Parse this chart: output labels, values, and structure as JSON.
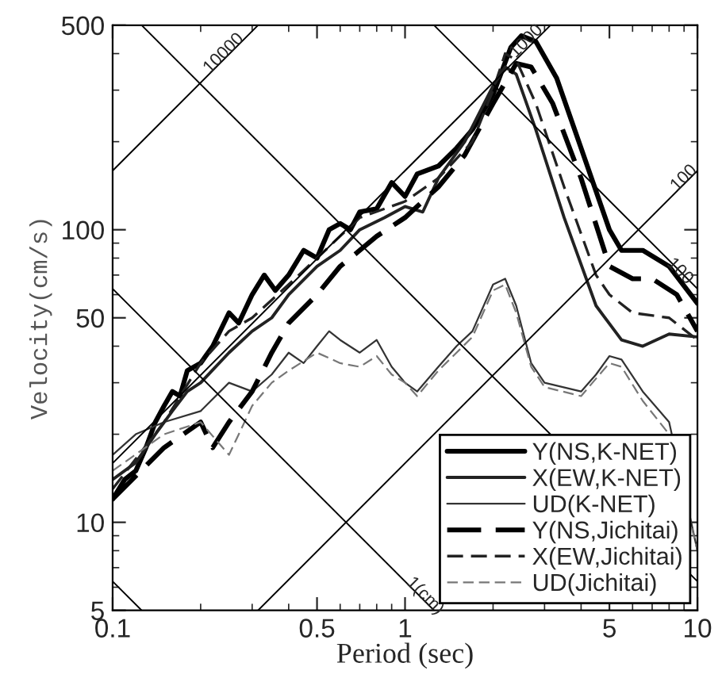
{
  "chart_data": {
    "type": "line",
    "xlabel": "Period (sec)",
    "ylabel": "Velocity(cm/s)",
    "log": "xy",
    "grid": false,
    "legend": "bottom right",
    "xlim": [
      0.1,
      10
    ],
    "xticks": [
      0.1,
      0.5,
      1,
      5,
      10
    ],
    "ylim": [
      5,
      500
    ],
    "yticks": [
      5,
      10,
      50,
      100,
      500
    ],
    "series": [
      {
        "name": "Y(NS,K-NET)",
        "color": "#000000",
        "line_style": "solid",
        "x": [
          0.1,
          0.11,
          0.12,
          0.13,
          0.14,
          0.15,
          0.16,
          0.17,
          0.18,
          0.2,
          0.22,
          0.25,
          0.27,
          0.3,
          0.33,
          0.36,
          0.4,
          0.45,
          0.5,
          0.55,
          0.6,
          0.65,
          0.7,
          0.8,
          0.9,
          1.0,
          1.1,
          1.3,
          1.5,
          1.7,
          2.0,
          2.3,
          2.5,
          2.8,
          3.3,
          4,
          5,
          5.5,
          6.5,
          8,
          10
        ],
        "values": [
          12,
          14,
          15,
          18,
          22,
          25,
          28,
          27,
          33,
          35,
          40,
          52,
          48,
          60,
          70,
          62,
          70,
          85,
          80,
          100,
          105,
          100,
          115,
          118,
          145,
          130,
          155,
          165,
          190,
          220,
          290,
          420,
          460,
          440,
          330,
          190,
          100,
          85,
          85,
          75,
          56
        ]
      },
      {
        "name": "X(EW,K-NET)",
        "color": "#222222",
        "line_style": "solid",
        "x": [
          0.1,
          0.12,
          0.14,
          0.16,
          0.18,
          0.2,
          0.25,
          0.3,
          0.35,
          0.4,
          0.5,
          0.6,
          0.7,
          0.85,
          1.0,
          1.15,
          1.3,
          1.6,
          2.0,
          2.2,
          2.4,
          2.8,
          3.5,
          4.5,
          5.5,
          6.5,
          8,
          10
        ],
        "values": [
          14,
          16,
          20,
          24,
          28,
          30,
          38,
          45,
          50,
          60,
          75,
          85,
          100,
          110,
          120,
          115,
          150,
          200,
          310,
          360,
          340,
          220,
          110,
          55,
          42,
          40,
          44,
          43
        ]
      },
      {
        "name": "UD(K-NET)",
        "color": "#333333",
        "line_style": "solid",
        "x": [
          0.1,
          0.12,
          0.15,
          0.2,
          0.25,
          0.3,
          0.35,
          0.4,
          0.45,
          0.5,
          0.55,
          0.6,
          0.7,
          0.8,
          0.9,
          1.0,
          1.1,
          1.3,
          1.5,
          1.7,
          2.0,
          2.2,
          2.4,
          2.7,
          3.0,
          4.0,
          4.5,
          5.0,
          5.5,
          6.5,
          8,
          10
        ],
        "values": [
          17,
          20,
          22,
          24,
          30,
          28,
          32,
          38,
          35,
          40,
          45,
          42,
          38,
          42,
          34,
          30,
          28,
          34,
          40,
          45,
          65,
          68,
          55,
          35,
          30,
          28,
          32,
          37,
          36,
          28,
          22,
          8
        ]
      },
      {
        "name": "Y(NS,Jichitai)",
        "color": "#000000",
        "line_style": "dashed",
        "x": [
          0.1,
          0.15,
          0.2,
          0.22,
          0.25,
          0.3,
          0.35,
          0.4,
          0.5,
          0.6,
          0.7,
          0.8,
          1.0,
          1.3,
          1.6,
          2.0,
          2.4,
          2.7,
          3.2,
          4,
          5,
          6,
          7,
          8.5,
          10
        ],
        "values": [
          12,
          18,
          22,
          18,
          22,
          28,
          38,
          48,
          60,
          75,
          85,
          95,
          110,
          140,
          180,
          270,
          370,
          360,
          270,
          150,
          75,
          68,
          68,
          60,
          45
        ]
      },
      {
        "name": "X(EW,Jichitai)",
        "color": "#222222",
        "line_style": "dashed",
        "x": [
          0.1,
          0.15,
          0.2,
          0.25,
          0.3,
          0.4,
          0.5,
          0.7,
          1.0,
          1.3,
          1.7,
          2.0,
          2.2,
          2.4,
          2.8,
          3.5,
          4.5,
          5,
          6,
          8,
          10
        ],
        "values": [
          13,
          22,
          35,
          45,
          50,
          65,
          80,
          110,
          125,
          150,
          200,
          300,
          400,
          380,
          270,
          140,
          70,
          60,
          52,
          50,
          42
        ]
      },
      {
        "name": "UD(Jichitai)",
        "color": "#777777",
        "line_style": "dashed",
        "x": [
          0.1,
          0.15,
          0.2,
          0.25,
          0.3,
          0.35,
          0.4,
          0.5,
          0.6,
          0.7,
          0.8,
          0.9,
          1.0,
          1.1,
          1.3,
          1.5,
          1.7,
          2.0,
          2.2,
          2.4,
          2.7,
          3.0,
          4.0,
          4.5,
          5.0,
          5.5,
          6.5,
          8,
          10
        ],
        "values": [
          15,
          20,
          22,
          17,
          25,
          30,
          33,
          38,
          35,
          34,
          37,
          32,
          30,
          27,
          33,
          38,
          43,
          62,
          65,
          52,
          34,
          29,
          27,
          31,
          35,
          34,
          26,
          20,
          8
        ]
      },
      {
        "color": "#000000",
        "line_style": "solid",
        "x": [
          0.1,
          0.3142
        ],
        "values": [
          159.2,
          500
        ]
      },
      {
        "color": "#000000",
        "line_style": "solid",
        "x": [
          0.1,
          3.142
        ],
        "values": [
          15.92,
          500
        ]
      },
      {
        "color": "#000000",
        "line_style": "solid",
        "x": [
          0.3142,
          10
        ],
        "values": [
          5,
          159.2
        ]
      },
      {
        "color": "#000000",
        "line_style": "solid",
        "x": [
          0.1,
          0.1257
        ],
        "values": [
          6.283,
          5
        ]
      },
      {
        "color": "#000000",
        "line_style": "solid",
        "x": [
          0.1,
          1.2566
        ],
        "values": [
          62.83,
          5
        ]
      },
      {
        "color": "#000000",
        "line_style": "solid",
        "x": [
          0.1257,
          10
        ],
        "values": [
          500,
          6.283
        ]
      },
      {
        "color": "#000000",
        "line_style": "solid",
        "x": [
          1.257,
          10
        ],
        "values": [
          500,
          62.83
        ]
      }
    ],
    "annotations": [
      {
        "text": "10000",
        "x": 0.24,
        "y": 400
      },
      {
        "text": "1000",
        "x": 2.6,
        "y": 440
      },
      {
        "text": "100",
        "x": 9.0,
        "y": 150
      },
      {
        "text": "100",
        "x": 8.7,
        "y": 72
      },
      {
        "text": "1(cm)",
        "x": 1.17,
        "y": 5.6
      }
    ]
  }
}
